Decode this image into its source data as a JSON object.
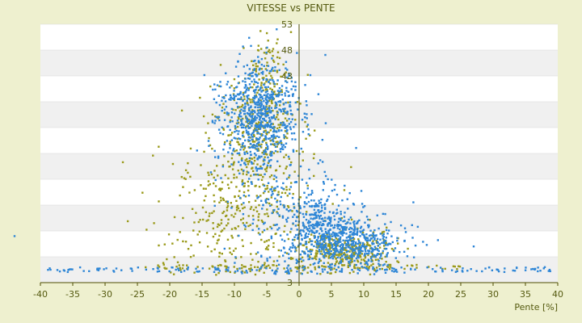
{
  "chart_data": {
    "type": "scatter",
    "title": "VITESSE vs PENTE",
    "xlabel": "Pente [%]",
    "ylabel": "",
    "xlim": [
      -40,
      40
    ],
    "ylim": [
      3,
      53
    ],
    "x_ticks": [
      -40,
      -35,
      -30,
      -25,
      -20,
      -15,
      -10,
      -5,
      0,
      5,
      10,
      15,
      20,
      25,
      30,
      35,
      40
    ],
    "y_tick_labels": [
      {
        "value": 53,
        "label": "53"
      },
      {
        "value": 48,
        "label": "48"
      },
      {
        "value": 43,
        "label": "43"
      },
      {
        "value": 3,
        "label": "3"
      }
    ],
    "y_gridlines": [
      3,
      8,
      13,
      18,
      23,
      28,
      33,
      38,
      43,
      48,
      53
    ],
    "grid": "horizontal alternating bands",
    "series": [
      {
        "color": "#2e86d6",
        "clusters": [
          {
            "cx": -6,
            "cy": 36,
            "sx": 3.0,
            "sy": 5,
            "n": 650
          },
          {
            "cx": -4,
            "cy": 22,
            "sx": 4.5,
            "sy": 9,
            "n": 230
          },
          {
            "cx": 5,
            "cy": 12,
            "sx": 3.5,
            "sy": 3,
            "n": 420
          },
          {
            "cx": 10,
            "cy": 10,
            "sx": 4.0,
            "sy": 2,
            "n": 220
          },
          {
            "cx": 2,
            "cy": 16,
            "sx": 2.5,
            "sy": 3,
            "n": 130
          }
        ],
        "baseline": {
          "y": 5.5,
          "xmin": -40,
          "xmax": 40,
          "n": 150
        },
        "extra_points": [
          [
            -44,
            12
          ],
          [
            27,
            10
          ],
          [
            38,
            6
          ]
        ]
      },
      {
        "color": "#9a9a1a",
        "clusters": [
          {
            "cx": -6,
            "cy": 33,
            "sx": 3.0,
            "sy": 7,
            "n": 380
          },
          {
            "cx": -10,
            "cy": 16,
            "sx": 6.0,
            "sy": 7,
            "n": 330
          },
          {
            "cx": 7,
            "cy": 9,
            "sx": 4.0,
            "sy": 2,
            "n": 320
          },
          {
            "cx": -5,
            "cy": 46,
            "sx": 1.3,
            "sy": 3.5,
            "n": 45
          }
        ],
        "baseline": {
          "y": 6.0,
          "xmin": -25,
          "xmax": 25,
          "n": 90
        }
      }
    ]
  }
}
